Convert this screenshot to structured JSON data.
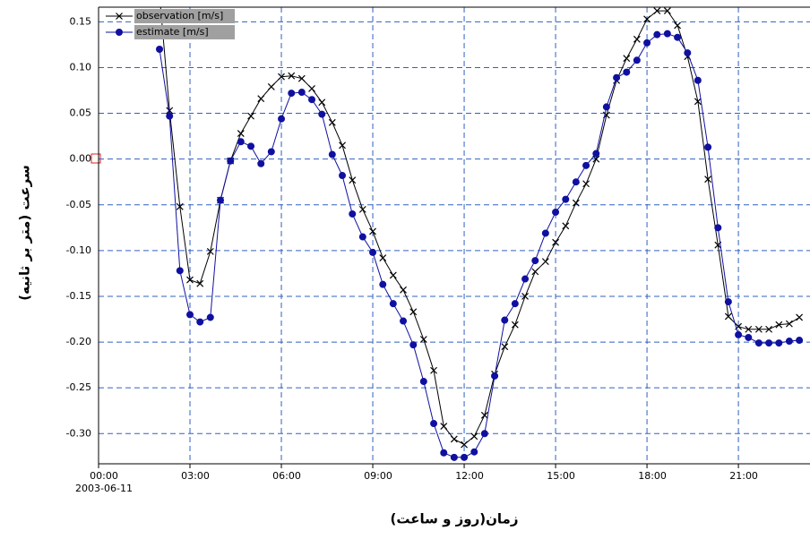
{
  "chart_data": {
    "type": "line",
    "y_label": "سرعت (متر بر ثانیه)",
    "x_label": "زمان(روز و ساعت)",
    "x_date_label": "2003-06-11",
    "x": [
      2.0,
      2.33,
      2.67,
      3.0,
      3.33,
      3.67,
      4.0,
      4.33,
      4.67,
      5.0,
      5.33,
      5.67,
      6.0,
      6.33,
      6.67,
      7.0,
      7.33,
      7.67,
      8.0,
      8.33,
      8.67,
      9.0,
      9.33,
      9.67,
      10.0,
      10.33,
      10.67,
      11.0,
      11.33,
      11.67,
      12.0,
      12.33,
      12.67,
      13.0,
      13.33,
      13.67,
      14.0,
      14.33,
      14.67,
      15.0,
      15.33,
      15.67,
      16.0,
      16.33,
      16.67,
      17.0,
      17.33,
      17.67,
      18.0,
      18.33,
      18.67,
      19.0,
      19.33,
      19.67,
      20.0,
      20.33,
      20.67,
      21.0,
      21.33,
      21.67,
      22.0,
      22.33,
      22.67,
      23.0
    ],
    "series": [
      {
        "name": "observation [m/s]",
        "color": "#000000",
        "marker": "x",
        "values": [
          0.18,
          0.053,
          -0.052,
          -0.132,
          -0.136,
          -0.101,
          -0.045,
          -0.002,
          0.028,
          0.047,
          0.066,
          0.079,
          0.09,
          0.091,
          0.088,
          0.077,
          0.062,
          0.04,
          0.015,
          -0.023,
          -0.055,
          -0.079,
          -0.108,
          -0.127,
          -0.143,
          -0.167,
          -0.197,
          -0.231,
          -0.292,
          -0.306,
          -0.312,
          -0.303,
          -0.28,
          -0.235,
          -0.205,
          -0.181,
          -0.15,
          -0.123,
          -0.112,
          -0.091,
          -0.073,
          -0.048,
          -0.027,
          0.0,
          0.048,
          0.086,
          0.11,
          0.131,
          0.153,
          0.162,
          0.162,
          0.146,
          0.112,
          0.063,
          -0.022,
          -0.094,
          -0.172,
          -0.183,
          -0.186,
          -0.186,
          -0.186,
          -0.181,
          -0.18,
          -0.173
        ]
      },
      {
        "name": "estimate [m/s]",
        "color": "#1010a0",
        "marker": "circle",
        "values": [
          0.12,
          0.047,
          -0.122,
          -0.17,
          -0.178,
          -0.173,
          -0.045,
          -0.002,
          0.019,
          0.014,
          -0.005,
          0.008,
          0.044,
          0.072,
          0.073,
          0.065,
          0.049,
          0.005,
          -0.018,
          -0.06,
          -0.085,
          -0.102,
          -0.137,
          -0.158,
          -0.177,
          -0.203,
          -0.243,
          -0.289,
          -0.321,
          -0.326,
          -0.326,
          -0.32,
          -0.3,
          -0.237,
          -0.176,
          -0.158,
          -0.131,
          -0.111,
          -0.081,
          -0.058,
          -0.044,
          -0.025,
          -0.007,
          0.006,
          0.057,
          0.089,
          0.095,
          0.108,
          0.127,
          0.136,
          0.137,
          0.133,
          0.116,
          0.086,
          0.013,
          -0.075,
          -0.156,
          -0.192,
          -0.195,
          -0.201,
          -0.201,
          -0.201,
          -0.199,
          -0.198
        ]
      }
    ],
    "xlim": [
      0,
      23.35
    ],
    "xticks": [
      {
        "value": 0,
        "label": "00:00"
      },
      {
        "value": 3,
        "label": "03:00"
      },
      {
        "value": 6,
        "label": "06:00"
      },
      {
        "value": 9,
        "label": "09:00"
      },
      {
        "value": 12,
        "label": "12:00"
      },
      {
        "value": 15,
        "label": "15:00"
      },
      {
        "value": 18,
        "label": "18:00"
      },
      {
        "value": 21,
        "label": "21:00"
      }
    ],
    "ylim": [
      -0.333,
      0.166
    ],
    "yticks": [
      0.15,
      {
        "value": 0.1,
        "label": "0.10"
      },
      0.05,
      {
        "value": 0,
        "label": "0.00"
      },
      -0.05,
      {
        "value": -0.1,
        "label": "-0.10"
      },
      -0.15,
      {
        "value": -0.2,
        "label": "-0.20"
      },
      -0.25,
      {
        "value": -0.3,
        "label": "-0.30"
      }
    ],
    "grid": true,
    "legend": "upper-left"
  }
}
